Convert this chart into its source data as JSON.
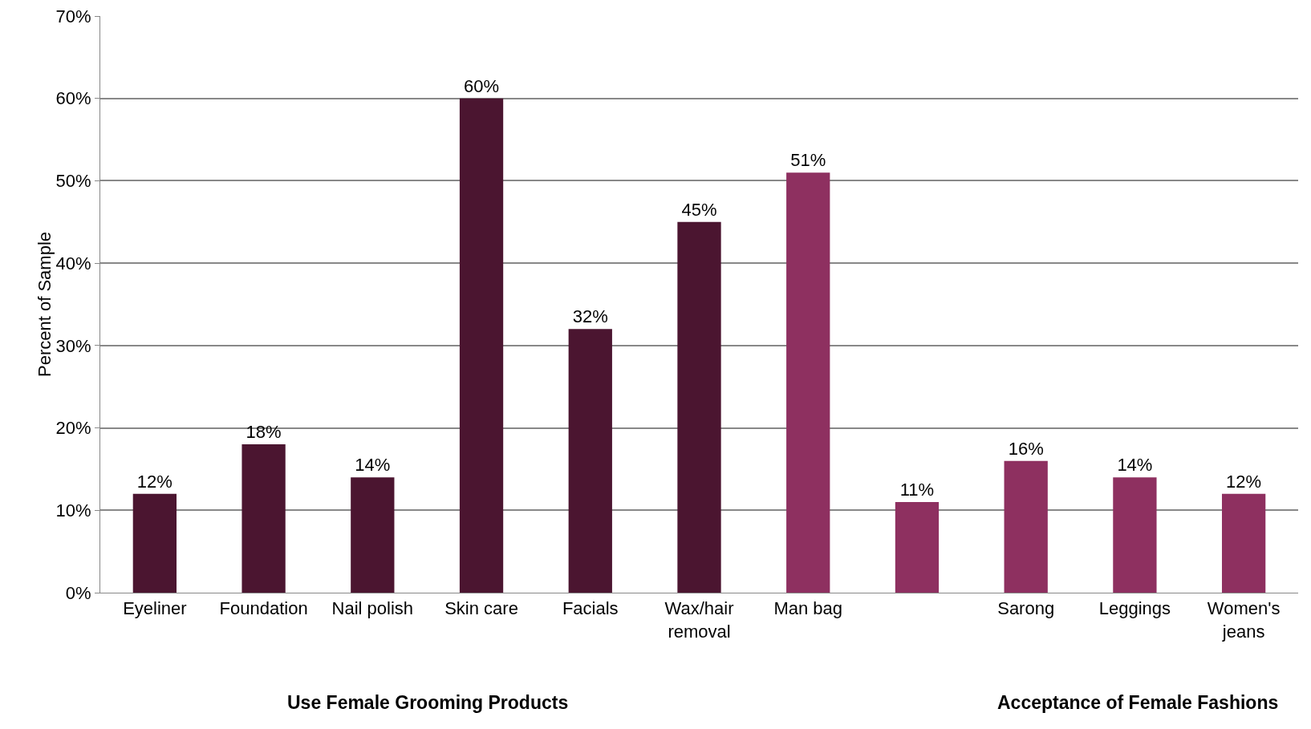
{
  "chart_data": {
    "type": "bar",
    "categories": [
      "Eyeliner",
      "Foundation",
      "Nail polish",
      "Skin care",
      "Facials",
      "Wax/hair removal",
      "Man bag",
      null,
      "Sarong",
      "Leggings",
      "Women's jeans"
    ],
    "values": [
      12,
      18,
      14,
      60,
      32,
      45,
      51,
      11,
      16,
      14,
      12
    ],
    "value_labels": [
      "12%",
      "18%",
      "14%",
      "60%",
      "32%",
      "45%",
      "51%",
      "11%",
      "16%",
      "14%",
      "12%"
    ],
    "colors": [
      "#4b1530",
      "#4b1530",
      "#4b1530",
      "#4b1530",
      "#4b1530",
      "#4b1530",
      "#8e3060",
      "#8e3060",
      "#8e3060",
      "#8e3060",
      "#8e3060"
    ],
    "ylabel": "Percent of Sample",
    "ylim": [
      0,
      70
    ],
    "yticks": [
      {
        "value": 0,
        "label": "0%"
      },
      {
        "value": 10,
        "label": "10%"
      },
      {
        "value": 20,
        "label": "20%"
      },
      {
        "value": 30,
        "label": "30%"
      },
      {
        "value": 40,
        "label": "40%"
      },
      {
        "value": 50,
        "label": "50%"
      },
      {
        "value": 60,
        "label": "60%"
      },
      {
        "value": 70,
        "label": "70%"
      }
    ],
    "annotations": [
      "Use Female Grooming Products",
      "Acceptance of Female Fashions"
    ],
    "grid": "y"
  }
}
